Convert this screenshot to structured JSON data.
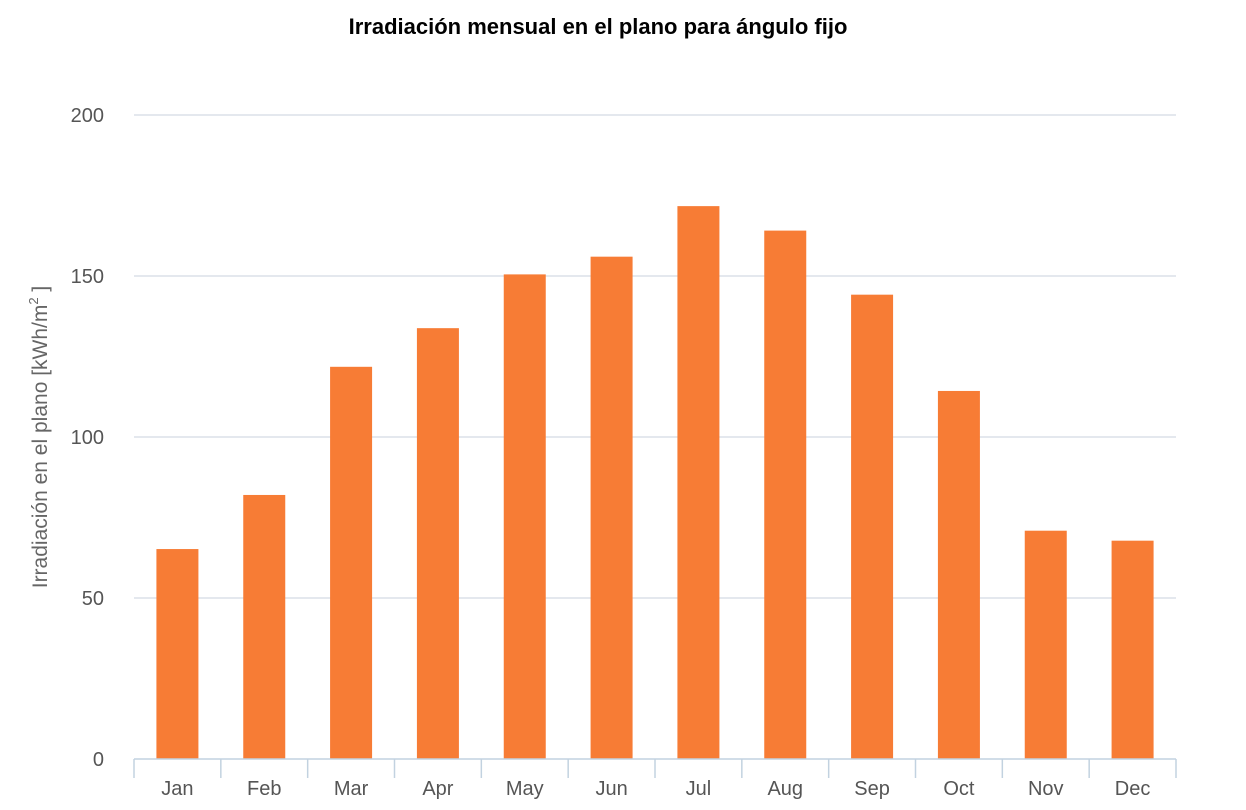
{
  "chart_data": {
    "type": "bar",
    "title": "Irradiación mensual en el plano para ángulo fijo",
    "xlabel": "",
    "ylabel": "Irradiación en el plano [kWh/m",
    "ylabel_superscript": "2",
    "ylabel_suffix": " ]",
    "categories": [
      "Jan",
      "Feb",
      "Mar",
      "Apr",
      "May",
      "Jun",
      "Jul",
      "Aug",
      "Sep",
      "Oct",
      "Nov",
      "Dec"
    ],
    "values": [
      65.2,
      82,
      121.8,
      133.8,
      150.5,
      156,
      171.7,
      164.1,
      144.2,
      114.3,
      70.9,
      67.8
    ],
    "ylim": [
      0,
      200
    ],
    "yticks": [
      0,
      50,
      100,
      150,
      200
    ],
    "grid": true,
    "legend": "none",
    "colors": {
      "bar": "#f77c35",
      "grid": "#d3dbe3",
      "axis": "#c2d2e0"
    }
  }
}
